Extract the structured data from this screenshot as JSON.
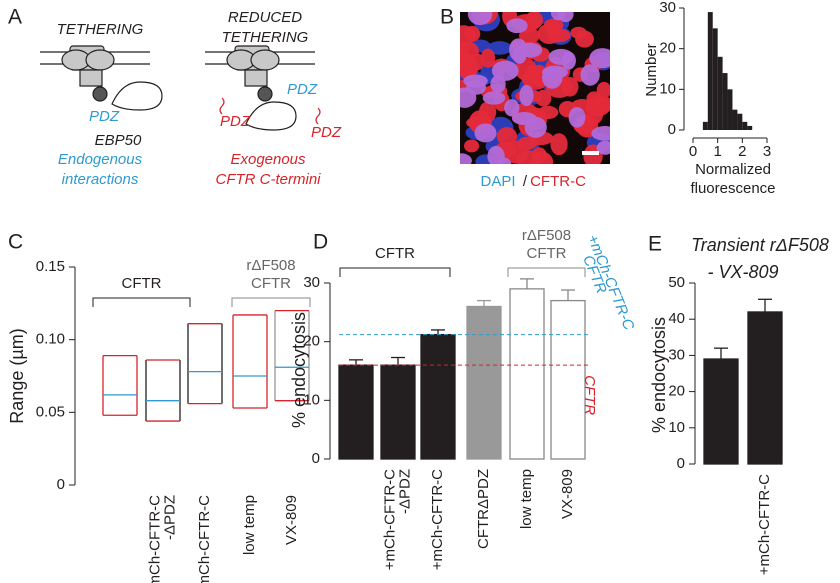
{
  "diagram": {
    "panel": "A",
    "left_title": "TETHERING",
    "right_title": [
      "REDUCED",
      "TETHERING"
    ],
    "left_pdz": "PDZ",
    "partner": "EBP50",
    "left_caption": [
      "Endogenous",
      "interactions"
    ],
    "right_pdz": "PDZ",
    "exogenous_pdz": [
      "PDZ",
      "PDZ"
    ],
    "right_caption": [
      "Exogenous",
      "CFTR C-termini"
    ]
  },
  "image": {
    "caption": [
      "DAPI",
      "/",
      "CFTR-C"
    ]
  },
  "chart_data": [
    {
      "panel": "B",
      "type": "histogram",
      "ylabel": "Number",
      "xlabel": [
        "Normalized",
        "fluorescence"
      ],
      "bins": [
        0.4,
        0.6,
        0.8,
        1.0,
        1.2,
        1.4,
        1.6,
        1.8,
        2.0,
        2.2,
        2.4
      ],
      "counts": [
        2,
        29,
        25,
        18,
        14,
        10,
        5,
        4,
        2,
        1
      ],
      "color": "#231f20",
      "xlim": [
        0,
        3
      ],
      "xticks": [
        0,
        1,
        2,
        3
      ],
      "ylim": [
        0,
        30
      ],
      "yticks": [
        0,
        10,
        20,
        30
      ]
    },
    {
      "panel": "C",
      "type": "range",
      "ylabel": "Range (µm)",
      "categories": [
        null,
        [
          "+mCh-CFTR-C",
          "-ΔPDZ"
        ],
        "+mCh-CFTR-C",
        "low temp",
        "VX-809"
      ],
      "low": [
        0.048,
        0.044,
        0.056,
        0.053,
        0.058
      ],
      "high": [
        0.089,
        0.086,
        0.111,
        0.117,
        0.12
      ],
      "median": [
        0.062,
        0.058,
        0.078,
        0.075,
        0.081
      ],
      "side_colors": [
        "#d8232a",
        "#231f20",
        "#231f20",
        "#d8232a",
        "#999999"
      ],
      "edge_color": "#d8232a",
      "median_color": "#2e9ad0",
      "groups": [
        [
          "CFTR"
        ],
        [
          "rΔF508",
          "CFTR"
        ]
      ],
      "ylim": [
        0,
        0.15
      ],
      "yticks": [
        0,
        0.05,
        {
          "value": 0.1,
          "label": "0.10"
        },
        0.15
      ]
    },
    {
      "panel": "D",
      "type": "bar",
      "ylabel": "% endocytosis",
      "categories": [
        null,
        [
          "+mCh-CFTR-C",
          "-ΔPDZ"
        ],
        "+mCh-CFTR-C",
        "CFTRΔPDZ",
        "low temp",
        "VX-809"
      ],
      "values": [
        16,
        16,
        21.2,
        26,
        29,
        27
      ],
      "errors": [
        0.9,
        1.3,
        0.8,
        1.0,
        1.7,
        1.8
      ],
      "colors": [
        "#231f20",
        "#231f20",
        "#231f20",
        "#999999",
        "#ffffff",
        "#ffffff"
      ],
      "groups": [
        [
          "CFTR"
        ],
        [
          "rΔF508",
          "CFTR"
        ]
      ],
      "reference_lines": [
        {
          "value": 16,
          "label": [
            "CFTR"
          ],
          "color": "#d8232a"
        },
        {
          "value": 21.2,
          "label": [
            "CFTR",
            "+mCh-CFTR-C"
          ],
          "color": "#2e9ad0"
        }
      ],
      "ylim": [
        0,
        30
      ],
      "yticks": [
        0,
        10,
        20,
        30
      ]
    },
    {
      "panel": "E",
      "type": "bar",
      "title": [
        "Transient rΔF508",
        "- VX-809"
      ],
      "ylabel": "% endocytosis",
      "categories": [
        null,
        "+mCh-CFTR-C"
      ],
      "values": [
        29,
        42
      ],
      "errors": [
        3,
        3.5
      ],
      "colors": [
        "#231f20",
        "#231f20"
      ],
      "ylim": [
        0,
        50
      ],
      "yticks": [
        0,
        10,
        20,
        30,
        40,
        50
      ]
    }
  ]
}
